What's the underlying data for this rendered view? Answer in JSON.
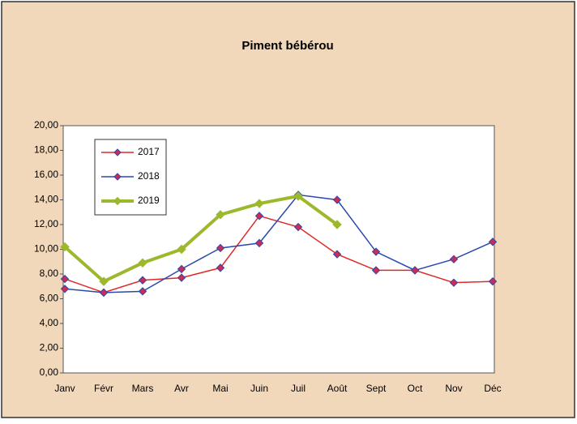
{
  "chart_data": {
    "type": "line",
    "title": "Piment bébérou",
    "categories": [
      "Janv",
      "Févr",
      "Mars",
      "Avr",
      "Mai",
      "Juin",
      "Juil",
      "Août",
      "Sept",
      "Oct",
      "Nov",
      "Déc"
    ],
    "series": [
      {
        "name": "2017",
        "color": "#e02828",
        "values": [
          7.6,
          6.5,
          7.5,
          7.7,
          8.5,
          12.7,
          11.8,
          9.6,
          8.3,
          8.3,
          7.3,
          7.4
        ]
      },
      {
        "name": "2018",
        "color": "#2a48b0",
        "values": [
          6.8,
          6.5,
          6.6,
          8.4,
          10.1,
          10.5,
          14.4,
          14.0,
          9.8,
          8.3,
          9.2,
          10.6
        ]
      },
      {
        "name": "2019",
        "color": "#9cb82c",
        "values": [
          10.2,
          7.4,
          8.9,
          10.0,
          12.8,
          13.7,
          14.3,
          12.0,
          null,
          null,
          null,
          null
        ]
      }
    ],
    "ylim": [
      0,
      20
    ],
    "yticks": [
      {
        "value": 0,
        "label": "0,00"
      },
      {
        "value": 2,
        "label": "2,00"
      },
      {
        "value": 4,
        "label": "4,00"
      },
      {
        "value": 6,
        "label": "6,00"
      },
      {
        "value": 8,
        "label": "8,00"
      },
      {
        "value": 10,
        "label": "10,00"
      },
      {
        "value": 12,
        "label": "12,00"
      },
      {
        "value": 14,
        "label": "14,00"
      },
      {
        "value": 16,
        "label": "16,00"
      },
      {
        "value": 18,
        "label": "18,00"
      },
      {
        "value": 20,
        "label": "20,00"
      }
    ],
    "grid": false
  }
}
